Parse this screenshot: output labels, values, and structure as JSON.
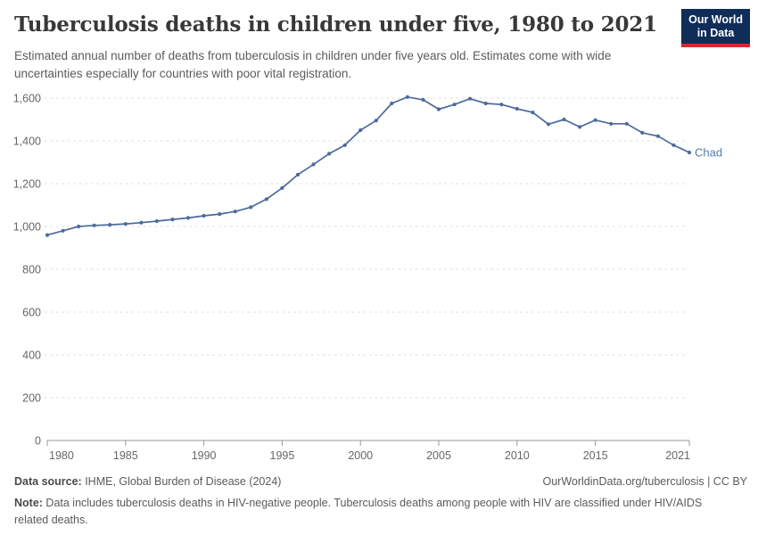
{
  "header": {
    "title": "Tuberculosis deaths in children under five, 1980 to 2021",
    "subtitle": "Estimated annual number of deaths from tuberculosis in children under five years old. Estimates come with wide uncertainties especially for countries with poor vital registration.",
    "logo": {
      "line1": "Our World",
      "line2": "in Data"
    }
  },
  "chart_data": {
    "type": "line",
    "title": "Tuberculosis deaths in children under five, 1980 to 2021",
    "xlabel": "",
    "ylabel": "",
    "ylim": [
      0,
      1600
    ],
    "yticks": [
      0,
      200,
      400,
      600,
      800,
      1000,
      1200,
      1400,
      1600
    ],
    "xticks": [
      1980,
      1985,
      1990,
      1995,
      2000,
      2005,
      2010,
      2015,
      2021
    ],
    "grid": "horizontal-dashed",
    "legend_position": "end-of-line-label",
    "x": [
      1980,
      1981,
      1982,
      1983,
      1984,
      1985,
      1986,
      1987,
      1988,
      1989,
      1990,
      1991,
      1992,
      1993,
      1994,
      1995,
      1996,
      1997,
      1998,
      1999,
      2000,
      2001,
      2002,
      2003,
      2004,
      2005,
      2006,
      2007,
      2008,
      2009,
      2010,
      2011,
      2012,
      2013,
      2014,
      2015,
      2016,
      2017,
      2018,
      2019,
      2020,
      2021
    ],
    "series": [
      {
        "name": "Chad",
        "color": "#4C6A9C",
        "values": [
          960,
          980,
          1000,
          1005,
          1008,
          1012,
          1018,
          1025,
          1033,
          1040,
          1050,
          1058,
          1070,
          1090,
          1128,
          1180,
          1242,
          1290,
          1340,
          1380,
          1450,
          1495,
          1575,
          1605,
          1592,
          1548,
          1570,
          1597,
          1575,
          1570,
          1550,
          1533,
          1478,
          1500,
          1465,
          1497,
          1480,
          1480,
          1438,
          1422,
          1380,
          1346
        ]
      }
    ]
  },
  "footer": {
    "datasource_label": "Data source:",
    "datasource_value": " IHME, Global Burden of Disease (2024)",
    "attribution": "OurWorldinData.org/tuberculosis | CC BY",
    "note_label": "Note:",
    "note_value": " Data includes tuberculosis deaths in HIV-negative people. Tuberculosis deaths among people with HIV are classified under HIV/AIDS related deaths."
  },
  "colors": {
    "line": "#4C6A9C",
    "entity_label": "#577ab1",
    "grid": "#dddddd",
    "axis": "#999999",
    "logo_bg": "#102d59",
    "logo_stripe": "#d7282f",
    "title": "#383838",
    "text": "#5b5b5b",
    "tick": "#666666"
  }
}
